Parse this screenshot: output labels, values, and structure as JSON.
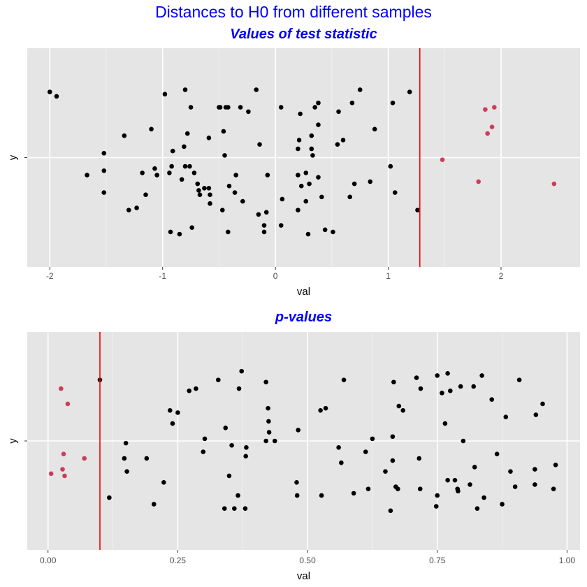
{
  "page": {
    "title": "Distances to H0 from different samples"
  },
  "colors": {
    "panel_bg": "#e5e5e5",
    "grid_major": "#ffffff",
    "points": "#000000",
    "highlight": "#cd3d58",
    "vline": "#ff0000",
    "title": "#0000ff"
  },
  "chart_data": [
    {
      "type": "scatter",
      "title": "Values of test statistic",
      "xlabel": "val",
      "ylabel": "y",
      "xlim": [
        -2.2,
        2.7
      ],
      "ylim": [
        -0.5,
        0.5
      ],
      "xticks": [
        -2,
        -1,
        0,
        1,
        2
      ],
      "xtick_labels": [
        "-2",
        "-1",
        "0",
        "1",
        "2"
      ],
      "yticks": [
        0
      ],
      "ytick_labels": [
        ""
      ],
      "grid": true,
      "legend": "none",
      "vline": 1.28,
      "series": [
        {
          "role": "inside",
          "points": [
            [
              -2.0,
              0.3
            ],
            [
              -1.94,
              0.28
            ],
            [
              -1.67,
              -0.08
            ],
            [
              -1.52,
              0.02
            ],
            [
              -1.52,
              -0.06
            ],
            [
              -1.52,
              -0.16
            ],
            [
              -1.34,
              0.1
            ],
            [
              -1.3,
              -0.24
            ],
            [
              -1.23,
              -0.23
            ],
            [
              -1.18,
              -0.07
            ],
            [
              -1.15,
              -0.17
            ],
            [
              -1.1,
              0.13
            ],
            [
              -1.07,
              -0.05
            ],
            [
              -1.05,
              -0.08
            ],
            [
              -0.98,
              0.29
            ],
            [
              -0.94,
              -0.07
            ],
            [
              -0.93,
              -0.34
            ],
            [
              -0.92,
              -0.04
            ],
            [
              -0.91,
              0.03
            ],
            [
              -0.85,
              -0.35
            ],
            [
              -0.83,
              -0.1
            ],
            [
              -0.81,
              0.05
            ],
            [
              -0.8,
              0.31
            ],
            [
              -0.8,
              -0.04
            ],
            [
              -0.78,
              0.11
            ],
            [
              -0.76,
              -0.04
            ],
            [
              -0.75,
              0.23
            ],
            [
              -0.74,
              -0.32
            ],
            [
              -0.72,
              -0.07
            ],
            [
              -0.69,
              -0.12
            ],
            [
              -0.68,
              -0.15
            ],
            [
              -0.67,
              -0.17
            ],
            [
              -0.63,
              -0.14
            ],
            [
              -0.59,
              -0.14
            ],
            [
              -0.59,
              0.09
            ],
            [
              -0.58,
              -0.21
            ],
            [
              -0.58,
              -0.17
            ],
            [
              -0.5,
              0.23
            ],
            [
              -0.49,
              0.23
            ],
            [
              -0.47,
              -0.24
            ],
            [
              -0.46,
              0.12
            ],
            [
              -0.45,
              0.01
            ],
            [
              -0.44,
              0.23
            ],
            [
              -0.42,
              -0.34
            ],
            [
              -0.42,
              0.23
            ],
            [
              -0.41,
              -0.13
            ],
            [
              -0.36,
              -0.16
            ],
            [
              -0.35,
              -0.08
            ],
            [
              -0.31,
              0.23
            ],
            [
              -0.29,
              -0.2
            ],
            [
              -0.24,
              0.21
            ],
            [
              -0.17,
              0.31
            ],
            [
              -0.15,
              -0.26
            ],
            [
              -0.14,
              0.06
            ],
            [
              -0.1,
              -0.34
            ],
            [
              -0.1,
              -0.31
            ],
            [
              -0.08,
              -0.25
            ],
            [
              -0.07,
              -0.08
            ],
            [
              0.05,
              -0.31
            ],
            [
              0.06,
              -0.19
            ],
            [
              0.05,
              0.23
            ],
            [
              0.2,
              -0.24
            ],
            [
              0.2,
              0.04
            ],
            [
              0.2,
              -0.08
            ],
            [
              0.21,
              0.08
            ],
            [
              0.22,
              0.2
            ],
            [
              0.23,
              -0.13
            ],
            [
              0.27,
              -0.2
            ],
            [
              0.27,
              -0.07
            ],
            [
              0.29,
              -0.35
            ],
            [
              0.3,
              -0.12
            ],
            [
              0.32,
              0.04
            ],
            [
              0.32,
              0.1
            ],
            [
              0.33,
              0.01
            ],
            [
              0.35,
              0.23
            ],
            [
              0.38,
              0.25
            ],
            [
              0.38,
              -0.09
            ],
            [
              0.38,
              0.15
            ],
            [
              0.41,
              -0.18
            ],
            [
              0.44,
              -0.33
            ],
            [
              0.51,
              -0.34
            ],
            [
              0.55,
              0.06
            ],
            [
              0.56,
              0.21
            ],
            [
              0.6,
              0.08
            ],
            [
              0.66,
              -0.18
            ],
            [
              0.68,
              0.25
            ],
            [
              0.7,
              -0.12
            ],
            [
              0.75,
              0.31
            ],
            [
              0.84,
              -0.11
            ],
            [
              0.88,
              0.13
            ],
            [
              1.02,
              -0.04
            ],
            [
              1.04,
              0.25
            ],
            [
              1.06,
              -0.16
            ],
            [
              1.19,
              0.3
            ],
            [
              1.26,
              -0.24
            ]
          ]
        },
        {
          "role": "beyond",
          "points": [
            [
              1.48,
              -0.01
            ],
            [
              1.8,
              -0.11
            ],
            [
              1.86,
              0.22
            ],
            [
              1.88,
              0.11
            ],
            [
              1.92,
              0.14
            ],
            [
              1.94,
              0.23
            ],
            [
              2.47,
              -0.12
            ]
          ]
        }
      ]
    },
    {
      "type": "scatter",
      "title": "p-values",
      "xlabel": "val",
      "ylabel": "y",
      "xlim": [
        -0.04,
        1.025
      ],
      "ylim": [
        -0.5,
        0.5
      ],
      "xticks": [
        0.0,
        0.25,
        0.5,
        0.75,
        1.0
      ],
      "xtick_labels": [
        "0.00",
        "0.25",
        "0.50",
        "0.75",
        "1.00"
      ],
      "yticks": [
        0
      ],
      "ytick_labels": [
        ""
      ],
      "grid": true,
      "legend": "none",
      "vline": 0.1,
      "series": [
        {
          "role": "beyond",
          "points": [
            [
              0.006,
              -0.15
            ],
            [
              0.025,
              0.24
            ],
            [
              0.028,
              -0.13
            ],
            [
              0.03,
              -0.06
            ],
            [
              0.032,
              -0.16
            ],
            [
              0.038,
              0.17
            ],
            [
              0.07,
              -0.08
            ]
          ]
        },
        {
          "role": "inside",
          "points": [
            [
              0.1,
              0.28
            ],
            [
              0.118,
              -0.26
            ],
            [
              0.147,
              -0.08
            ],
            [
              0.15,
              -0.01
            ],
            [
              0.152,
              -0.14
            ],
            [
              0.19,
              -0.08
            ],
            [
              0.204,
              -0.29
            ],
            [
              0.223,
              -0.19
            ],
            [
              0.235,
              0.14
            ],
            [
              0.24,
              0.08
            ],
            [
              0.25,
              0.13
            ],
            [
              0.272,
              0.23
            ],
            [
              0.285,
              0.24
            ],
            [
              0.299,
              -0.05
            ],
            [
              0.302,
              0.01
            ],
            [
              0.328,
              0.28
            ],
            [
              0.34,
              -0.31
            ],
            [
              0.342,
              0.06
            ],
            [
              0.349,
              -0.16
            ],
            [
              0.354,
              -0.02
            ],
            [
              0.359,
              -0.31
            ],
            [
              0.366,
              -0.25
            ],
            [
              0.368,
              0.24
            ],
            [
              0.373,
              0.32
            ],
            [
              0.381,
              -0.07
            ],
            [
              0.382,
              -0.03
            ],
            [
              0.38,
              -0.31
            ],
            [
              0.42,
              0.27
            ],
            [
              0.42,
              0.0
            ],
            [
              0.424,
              0.15
            ],
            [
              0.425,
              0.09
            ],
            [
              0.426,
              0.04
            ],
            [
              0.437,
              0.0
            ],
            [
              0.479,
              -0.19
            ],
            [
              0.48,
              -0.25
            ],
            [
              0.482,
              0.05
            ],
            [
              0.525,
              0.14
            ],
            [
              0.527,
              -0.25
            ],
            [
              0.535,
              0.15
            ],
            [
              0.56,
              -0.03
            ],
            [
              0.565,
              -0.1
            ],
            [
              0.57,
              0.28
            ],
            [
              0.589,
              -0.24
            ],
            [
              0.612,
              -0.05
            ],
            [
              0.617,
              -0.22
            ],
            [
              0.625,
              0.01
            ],
            [
              0.65,
              -0.14
            ],
            [
              0.66,
              -0.32
            ],
            [
              0.664,
              -0.09
            ],
            [
              0.664,
              0.02
            ],
            [
              0.666,
              0.27
            ],
            [
              0.67,
              -0.21
            ],
            [
              0.674,
              -0.22
            ],
            [
              0.676,
              0.16
            ],
            [
              0.684,
              0.14
            ],
            [
              0.71,
              0.29
            ],
            [
              0.715,
              -0.08
            ],
            [
              0.718,
              0.24
            ],
            [
              0.717,
              -0.22
            ],
            [
              0.748,
              -0.3
            ],
            [
              0.75,
              -0.25
            ],
            [
              0.75,
              0.3
            ],
            [
              0.759,
              0.22
            ],
            [
              0.765,
              0.08
            ],
            [
              0.77,
              -0.18
            ],
            [
              0.77,
              0.31
            ],
            [
              0.775,
              0.23
            ],
            [
              0.784,
              -0.18
            ],
            [
              0.789,
              -0.22
            ],
            [
              0.79,
              -0.23
            ],
            [
              0.795,
              0.25
            ],
            [
              0.8,
              0.0
            ],
            [
              0.813,
              -0.2
            ],
            [
              0.82,
              0.25
            ],
            [
              0.822,
              -0.12
            ],
            [
              0.827,
              -0.31
            ],
            [
              0.836,
              0.3
            ],
            [
              0.84,
              -0.26
            ],
            [
              0.855,
              0.19
            ],
            [
              0.865,
              -0.06
            ],
            [
              0.875,
              -0.29
            ],
            [
              0.882,
              0.11
            ],
            [
              0.891,
              -0.14
            ],
            [
              0.9,
              -0.21
            ],
            [
              0.908,
              0.28
            ],
            [
              0.938,
              -0.13
            ],
            [
              0.938,
              -0.2
            ],
            [
              0.94,
              0.12
            ],
            [
              0.953,
              0.17
            ],
            [
              0.974,
              -0.22
            ],
            [
              0.978,
              -0.11
            ]
          ]
        }
      ]
    }
  ]
}
